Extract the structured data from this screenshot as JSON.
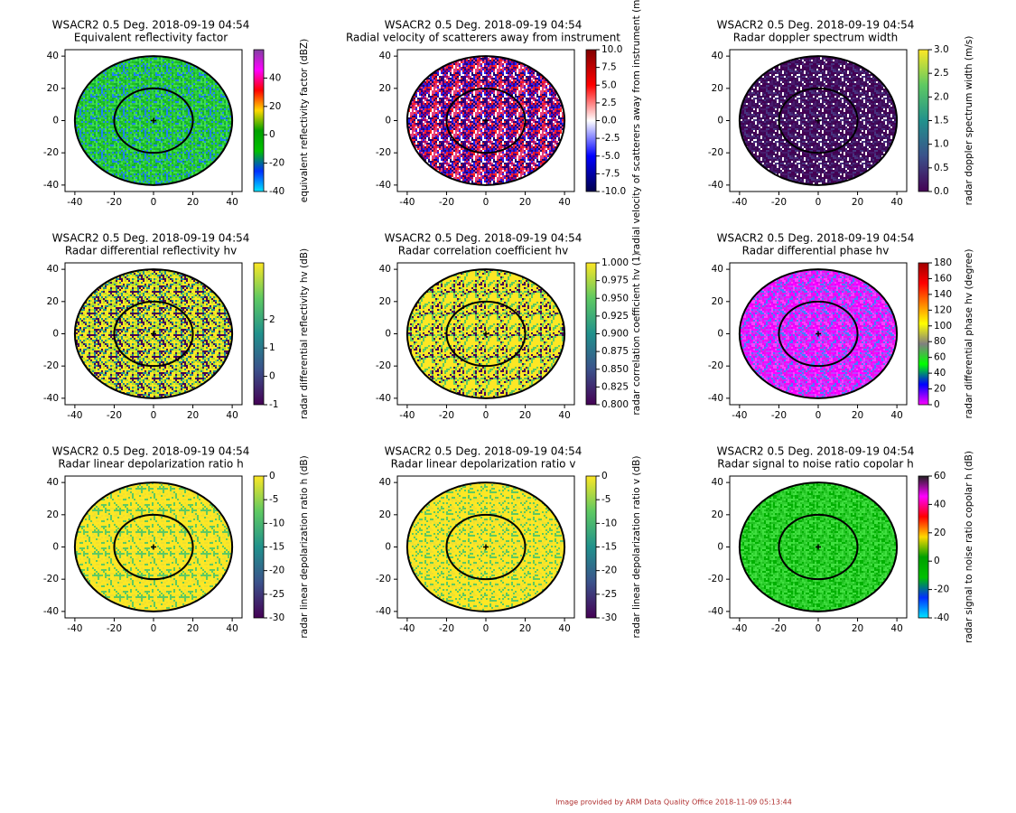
{
  "chart_data": [
    {
      "type": "ppi",
      "title": "WSACR2 0.5 Deg. 2018-09-19 04:54",
      "subtitle": "Equivalent reflectivity factor",
      "xlim": [
        -45,
        45
      ],
      "ylim": [
        -44,
        44
      ],
      "xticks": [
        -40,
        -20,
        0,
        20,
        40
      ],
      "yticks": [
        -40,
        -20,
        0,
        20,
        40
      ],
      "range_rings": [
        20,
        40
      ],
      "field_colors": [
        "#20c020",
        "#30d040",
        "#10b030",
        "#40e050",
        "#28c838",
        "#2080ff"
      ],
      "colorbar": {
        "label": "equivalent reflectivity factor (dBZ)",
        "lim": [
          -40,
          60
        ],
        "ticks": [
          -40,
          -20,
          0,
          20,
          40
        ],
        "colors": [
          "#00e5ff",
          "#0030ff",
          "#00c000",
          "#00a000",
          "#ffd800",
          "#ff0000",
          "#ff00ff",
          "#8040a0"
        ]
      }
    },
    {
      "type": "ppi",
      "title": "WSACR2 0.5 Deg. 2018-09-19 04:54",
      "subtitle": "Radial velocity of scatterers away from instrument",
      "xlim": [
        -45,
        45
      ],
      "ylim": [
        -44,
        44
      ],
      "xticks": [
        -40,
        -20,
        0,
        20,
        40
      ],
      "yticks": [
        -40,
        -20,
        0,
        20,
        40
      ],
      "range_rings": [
        20,
        40
      ],
      "field_colors": [
        "#3a0088",
        "#b00060",
        "#ff2020",
        "#ffffff",
        "#2020ff",
        "#200070",
        "#e04080"
      ],
      "colorbar": {
        "label": "radial velocity of scatterers away from instrument (m/s)",
        "lim": [
          -10,
          10
        ],
        "ticks": [
          {
            "value": -10,
            "label": "-10.0"
          },
          -7.5,
          {
            "value": -5,
            "label": "-5.0"
          },
          -2.5,
          {
            "value": 0,
            "label": "0.0"
          },
          2.5,
          {
            "value": 5,
            "label": "5.0"
          },
          7.5,
          {
            "value": 10,
            "label": "10.0"
          }
        ],
        "colors": [
          "#00004c",
          "#0000ff",
          "#ffffff",
          "#ff0000",
          "#7f0000"
        ]
      }
    },
    {
      "type": "ppi",
      "title": "WSACR2 0.5 Deg. 2018-09-19 04:54",
      "subtitle": "Radar doppler spectrum width",
      "xlim": [
        -45,
        45
      ],
      "ylim": [
        -44,
        44
      ],
      "xticks": [
        -40,
        -20,
        0,
        20,
        40
      ],
      "yticks": [
        -40,
        -20,
        0,
        20,
        40
      ],
      "range_rings": [
        20,
        40
      ],
      "field_colors": [
        "#3b0f5a",
        "#440154",
        "#ffffff",
        "#46327e",
        "#440154",
        "#481a6c"
      ],
      "colorbar": {
        "label": "radar doppler spectrum width (m/s)",
        "lim": [
          0,
          3
        ],
        "ticks": [
          {
            "value": 0,
            "label": "0.0"
          },
          0.5,
          {
            "value": 1,
            "label": "1.0"
          },
          1.5,
          {
            "value": 2,
            "label": "2.0"
          },
          2.5,
          {
            "value": 3,
            "label": "3.0"
          }
        ],
        "colors": [
          "#440154",
          "#3b528b",
          "#21918c",
          "#5ec962",
          "#fde725"
        ]
      }
    },
    {
      "type": "ppi",
      "title": "WSACR2 0.5 Deg. 2018-09-19 04:54",
      "subtitle": "Radar differential reflectivity hv",
      "xlim": [
        -45,
        45
      ],
      "ylim": [
        -44,
        44
      ],
      "xticks": [
        -40,
        -20,
        0,
        20,
        40
      ],
      "yticks": [
        -40,
        -20,
        0,
        20,
        40
      ],
      "range_rings": [
        20,
        40
      ],
      "field_colors": [
        "#fde725",
        "#440154",
        "#21918c",
        "#fde725",
        "#b5de2b"
      ],
      "colorbar": {
        "label": "radar differential reflectivity hv (dB)",
        "lim": [
          -1,
          4
        ],
        "ticks": [
          -1,
          0,
          1,
          2
        ],
        "colors": [
          "#440154",
          "#3b528b",
          "#21918c",
          "#5ec962",
          "#fde725"
        ]
      }
    },
    {
      "type": "ppi",
      "title": "WSACR2 0.5 Deg. 2018-09-19 04:54",
      "subtitle": "Radar correlation coefficient hv",
      "xlim": [
        -45,
        45
      ],
      "ylim": [
        -44,
        44
      ],
      "xticks": [
        -40,
        -20,
        0,
        20,
        40
      ],
      "yticks": [
        -40,
        -20,
        0,
        20,
        40
      ],
      "range_rings": [
        20,
        40
      ],
      "field_colors": [
        "#fde725",
        "#440154",
        "#fde725",
        "#5ec962",
        "#fde725"
      ],
      "colorbar": {
        "label": "radar correlation coefficient hv (1)",
        "lim": [
          0.8,
          1
        ],
        "ticks": [
          {
            "value": 0.8,
            "label": "0.800"
          },
          {
            "value": 0.825,
            "label": "0.825"
          },
          {
            "value": 0.85,
            "label": "0.850"
          },
          {
            "value": 0.875,
            "label": "0.875"
          },
          {
            "value": 0.9,
            "label": "0.900"
          },
          {
            "value": 0.925,
            "label": "0.925"
          },
          {
            "value": 0.95,
            "label": "0.950"
          },
          {
            "value": 0.975,
            "label": "0.975"
          },
          {
            "value": 1,
            "label": "1.000"
          }
        ],
        "colors": [
          "#440154",
          "#3b528b",
          "#21918c",
          "#5ec962",
          "#fde725"
        ]
      }
    },
    {
      "type": "ppi",
      "title": "WSACR2 0.5 Deg. 2018-09-19 04:54",
      "subtitle": "Radar differential phase hv",
      "xlim": [
        -45,
        45
      ],
      "ylim": [
        -44,
        44
      ],
      "xticks": [
        -40,
        -20,
        0,
        20,
        40
      ],
      "yticks": [
        -40,
        -20,
        0,
        20,
        40
      ],
      "range_rings": [
        20,
        40
      ],
      "field_colors": [
        "#ff00ff",
        "#e000ff",
        "#c040ff",
        "#4080ff",
        "#ff40ff",
        "#e020e0"
      ],
      "colorbar": {
        "label": "radar differential phase hv (degree)",
        "lim": [
          0,
          180
        ],
        "ticks": [
          0,
          20,
          40,
          60,
          80,
          100,
          120,
          140,
          160,
          180
        ],
        "colors": [
          "#ff00ff",
          "#0000ff",
          "#00ff00",
          "#808080",
          "#ffff00",
          "#ff8000",
          "#ff0000",
          "#a00000"
        ]
      }
    },
    {
      "type": "ppi",
      "title": "WSACR2 0.5 Deg. 2018-09-19 04:54",
      "subtitle": "Radar linear depolarization ratio h",
      "xlim": [
        -45,
        45
      ],
      "ylim": [
        -44,
        44
      ],
      "xticks": [
        -40,
        -20,
        0,
        20,
        40
      ],
      "yticks": [
        -40,
        -20,
        0,
        20,
        40
      ],
      "range_rings": [
        20,
        40
      ],
      "field_colors": [
        "#fde725",
        "#f0e030",
        "#fde725",
        "#fde725",
        "#5ec962"
      ],
      "colorbar": {
        "label": "radar linear depolarization ratio h (dB)",
        "lim": [
          -30,
          0
        ],
        "ticks": [
          -30,
          -25,
          -20,
          -15,
          -10,
          -5,
          0
        ],
        "colors": [
          "#440154",
          "#3b528b",
          "#21918c",
          "#5ec962",
          "#fde725"
        ]
      }
    },
    {
      "type": "ppi",
      "title": "WSACR2 0.5 Deg. 2018-09-19 04:54",
      "subtitle": "Radar linear depolarization ratio v",
      "xlim": [
        -45,
        45
      ],
      "ylim": [
        -44,
        44
      ],
      "xticks": [
        -40,
        -20,
        0,
        20,
        40
      ],
      "yticks": [
        -40,
        -20,
        0,
        20,
        40
      ],
      "range_rings": [
        20,
        40
      ],
      "field_colors": [
        "#fde725",
        "#f0e030",
        "#fde725",
        "#fde725",
        "#5ec962"
      ],
      "colorbar": {
        "label": "radar linear depolarization ratio v (dB)",
        "lim": [
          -30,
          0
        ],
        "ticks": [
          -30,
          -25,
          -20,
          -15,
          -10,
          -5,
          0
        ],
        "colors": [
          "#440154",
          "#3b528b",
          "#21918c",
          "#5ec962",
          "#fde725"
        ]
      }
    },
    {
      "type": "ppi",
      "title": "WSACR2 0.5 Deg. 2018-09-19 04:54",
      "subtitle": "Radar signal to noise ratio copolar h",
      "xlim": [
        -45,
        45
      ],
      "ylim": [
        -44,
        44
      ],
      "xticks": [
        -40,
        -20,
        0,
        20,
        40
      ],
      "yticks": [
        -40,
        -20,
        0,
        20,
        40
      ],
      "range_rings": [
        20,
        40
      ],
      "field_colors": [
        "#20c020",
        "#30d030",
        "#00b000",
        "#40e040"
      ],
      "colorbar": {
        "label": "radar signal to noise ratio copolar h (dB)",
        "lim": [
          -40,
          60
        ],
        "ticks": [
          -40,
          -20,
          0,
          20,
          40,
          60
        ],
        "colors": [
          "#00e5ff",
          "#0030ff",
          "#00c000",
          "#00a000",
          "#ffd800",
          "#ff0000",
          "#ff00ff",
          "#202020"
        ]
      }
    }
  ],
  "footer": "Image provided by ARM Data Quality Office 2018-11-09 05:13:44"
}
